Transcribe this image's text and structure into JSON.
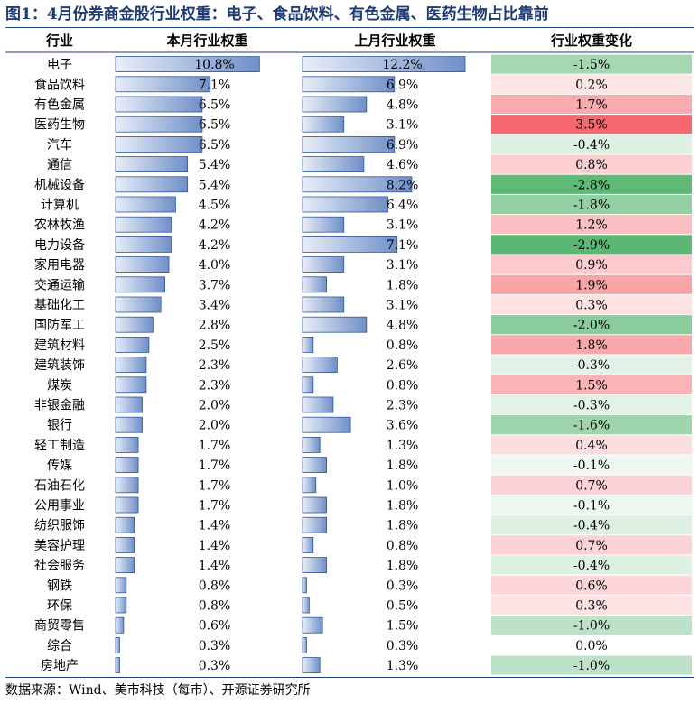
{
  "title": "图1：4月份券商金股行业权重：电子、食品饮料、有色金属、医药生物占比靠前",
  "source": "数据来源：Wind、美市科技（每市）、开源证券研究所",
  "colors": {
    "title": "#1f3b73",
    "bar_fill_light": "#e8eef8",
    "bar_fill_dark": "#6f8fc8",
    "bar_stroke": "#2f5597",
    "increase_strong": "#f4686e",
    "decrease_strong": "#5cb774",
    "neutral": "#ffffff"
  },
  "chart_data": {
    "type": "table",
    "columns": [
      "行业",
      "本月行业权重",
      "上月行业权重",
      "行业权重变化"
    ],
    "categories": [
      "电子",
      "食品饮料",
      "有色金属",
      "医药生物",
      "汽车",
      "通信",
      "机械设备",
      "计算机",
      "农林牧渔",
      "电力设备",
      "家用电器",
      "交通运输",
      "基础化工",
      "国防军工",
      "建筑材料",
      "建筑装饰",
      "煤炭",
      "非银金融",
      "银行",
      "轻工制造",
      "传媒",
      "石油石化",
      "公用事业",
      "纺织服饰",
      "美容护理",
      "社会服务",
      "钢铁",
      "环保",
      "商贸零售",
      "综合",
      "房地产"
    ],
    "series": [
      {
        "name": "本月行业权重",
        "values": [
          10.8,
          7.1,
          6.5,
          6.5,
          6.5,
          5.4,
          5.4,
          4.5,
          4.2,
          4.2,
          4.0,
          3.7,
          3.4,
          2.8,
          2.5,
          2.3,
          2.3,
          2.0,
          2.0,
          1.7,
          1.7,
          1.7,
          1.7,
          1.4,
          1.4,
          1.4,
          0.8,
          0.8,
          0.6,
          0.3,
          0.3
        ]
      },
      {
        "name": "上月行业权重",
        "values": [
          12.2,
          6.9,
          4.8,
          3.1,
          6.9,
          4.6,
          8.2,
          6.4,
          3.1,
          7.1,
          3.1,
          1.8,
          3.1,
          4.8,
          0.8,
          2.6,
          0.8,
          2.3,
          3.6,
          1.3,
          1.8,
          1.0,
          1.8,
          1.8,
          0.8,
          1.8,
          0.3,
          0.5,
          1.5,
          0.3,
          1.3
        ]
      },
      {
        "name": "行业权重变化",
        "values": [
          -1.5,
          0.2,
          1.7,
          3.5,
          -0.4,
          0.8,
          -2.8,
          -1.8,
          1.2,
          -2.9,
          0.9,
          1.9,
          0.3,
          -2.0,
          1.8,
          -0.3,
          1.5,
          -0.3,
          -1.6,
          0.4,
          -0.1,
          0.7,
          -0.1,
          -0.4,
          0.7,
          -0.4,
          0.6,
          0.3,
          -1.0,
          0.0,
          -1.0
        ]
      }
    ],
    "unit": "%",
    "ylim": [
      0,
      12.2
    ]
  }
}
